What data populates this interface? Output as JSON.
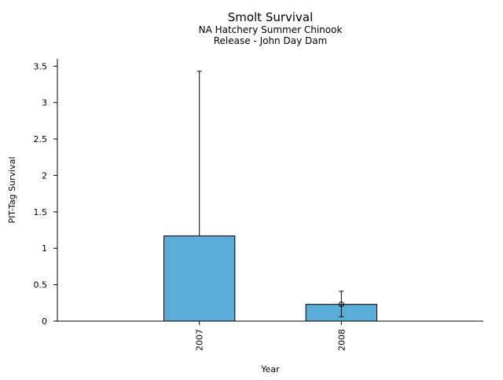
{
  "chart_data": {
    "type": "bar",
    "title": "Smolt Survival",
    "subtitle_lines": [
      "NA Hatchery Summer Chinook",
      "Release - John Day Dam"
    ],
    "xlabel": "Year",
    "ylabel": "PIT-Tag Survival",
    "categories": [
      "2007",
      "2008"
    ],
    "series": [
      {
        "values": [
          1.17,
          0.23
        ],
        "error_low": [
          1.17,
          0.06
        ],
        "error_high": [
          3.43,
          0.41
        ],
        "point_marker": [
          null,
          0.23
        ]
      }
    ],
    "ylim": [
      0,
      3.6
    ],
    "yticks": [
      0,
      0.5,
      1,
      1.5,
      2,
      2.5,
      3,
      3.5
    ],
    "ytick_labels": [
      "0",
      "0.5",
      "1",
      "1.5",
      "2",
      "2.5",
      "3",
      "3.5"
    ],
    "grid": false,
    "bar_color": "#5bacd6"
  }
}
